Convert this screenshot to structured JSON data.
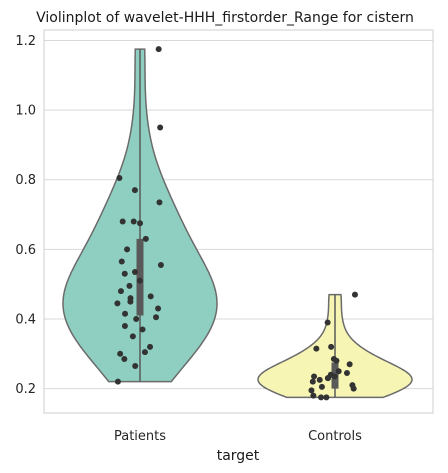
{
  "chart_data": {
    "type": "violin",
    "title": "Violinplot of wavelet-HHH_firstorder_Range for cistern",
    "xlabel": "target",
    "ylabel": "",
    "ylim": [
      0.13,
      1.23
    ],
    "yticks": [
      0.2,
      0.4,
      0.6,
      0.8,
      1.0,
      1.2
    ],
    "ytick_labels": [
      "0.2",
      "0.4",
      "0.6",
      "0.8",
      "1.0",
      "1.2"
    ],
    "grid": "horizontal",
    "categories": [
      "Patients",
      "Controls"
    ],
    "colors": {
      "Patients": "#8ecfc1",
      "Controls": "#f6f5b4",
      "outline": "#6b6b6b",
      "points": "#333333",
      "inner_box": "#595959"
    },
    "series": [
      {
        "category": "Patients",
        "min": 0.22,
        "max": 1.175,
        "q1": 0.41,
        "median": 0.5,
        "q3": 0.63,
        "points": [
          1.175,
          0.95,
          0.805,
          0.77,
          0.735,
          0.68,
          0.68,
          0.675,
          0.63,
          0.6,
          0.565,
          0.555,
          0.535,
          0.53,
          0.51,
          0.495,
          0.48,
          0.465,
          0.46,
          0.45,
          0.445,
          0.43,
          0.415,
          0.405,
          0.4,
          0.38,
          0.37,
          0.35,
          0.32,
          0.305,
          0.3,
          0.285,
          0.265,
          0.22
        ]
      },
      {
        "category": "Controls",
        "min": 0.175,
        "max": 0.47,
        "q1": 0.2,
        "median": 0.235,
        "q3": 0.275,
        "points": [
          0.47,
          0.39,
          0.32,
          0.315,
          0.285,
          0.28,
          0.27,
          0.25,
          0.245,
          0.24,
          0.235,
          0.235,
          0.23,
          0.23,
          0.225,
          0.22,
          0.21,
          0.205,
          0.2,
          0.195,
          0.18,
          0.175,
          0.175
        ]
      }
    ]
  }
}
